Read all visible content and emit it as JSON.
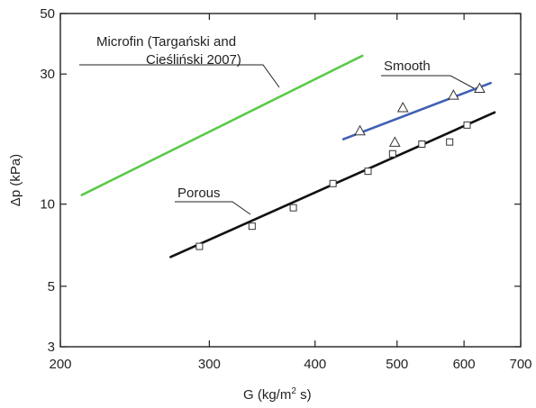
{
  "chart_data": {
    "type": "scatter",
    "x_scale": "log",
    "y_scale": "log",
    "xlim": [
      200,
      700
    ],
    "ylim": [
      3,
      50
    ],
    "x_ticks": [
      200,
      300,
      400,
      500,
      600,
      700
    ],
    "y_ticks": [
      3,
      5,
      10,
      30,
      50
    ],
    "x_tick_labels": [
      "200",
      "300",
      "400",
      "500",
      "600",
      "700"
    ],
    "y_tick_labels": [
      "3",
      "5",
      "10",
      "30",
      "50"
    ],
    "xlabel_parts": [
      "G (kg/m",
      "2",
      " s)"
    ],
    "ylabel": "Δp (kPa)",
    "grid": false,
    "series": [
      {
        "name": "Microfin (Targański and Cieśliński 2007)",
        "kind": "line",
        "color": "#5cc84a",
        "x": [
          212,
          455
        ],
        "y": [
          10.8,
          35.0
        ]
      },
      {
        "name": "Smooth",
        "kind": "line",
        "color": "#3f5fb5",
        "x": [
          432,
          645
        ],
        "y": [
          17.3,
          27.8
        ]
      },
      {
        "name": "Smooth data",
        "kind": "markers",
        "marker": "triangle",
        "x": [
          452,
          508,
          497,
          583,
          626
        ],
        "y": [
          18.5,
          22.5,
          16.8,
          25.0,
          26.5
        ]
      },
      {
        "name": "Porous",
        "kind": "line",
        "color": "#111111",
        "x": [
          270,
          652
        ],
        "y": [
          6.4,
          21.7
        ]
      },
      {
        "name": "Porous data",
        "kind": "markers",
        "marker": "square",
        "x": [
          292,
          337,
          377,
          420,
          462,
          494,
          535,
          577,
          605
        ],
        "y": [
          7.0,
          8.3,
          9.7,
          11.9,
          13.2,
          15.3,
          16.6,
          16.9,
          19.5
        ]
      }
    ],
    "annotations": {
      "microfin_line1": "Microfin (Targański and",
      "microfin_line2": "Cieśliński 2007)",
      "smooth": "Smooth",
      "porous": "Porous"
    }
  }
}
